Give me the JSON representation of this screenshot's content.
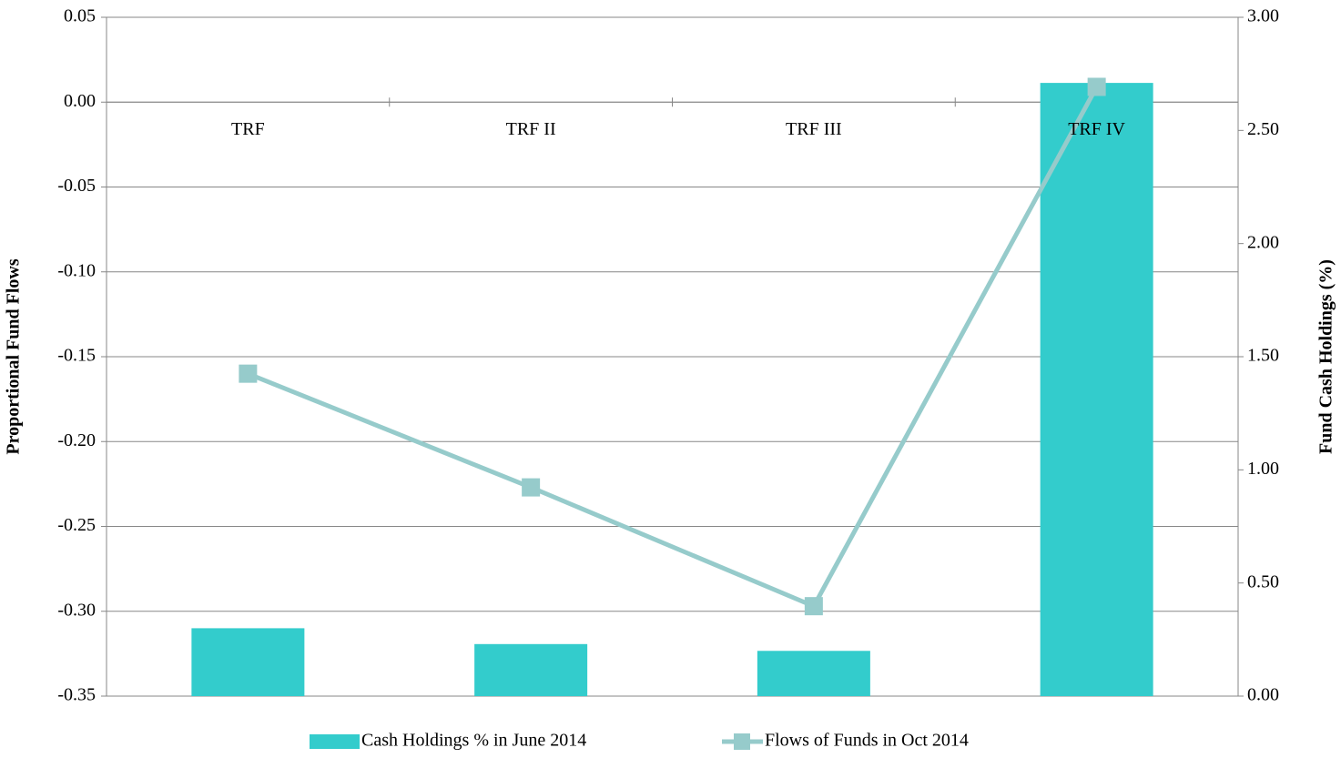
{
  "chart_data": {
    "type": "combo",
    "categories": [
      "TRF",
      "TRF II",
      "TRF III",
      "TRF IV"
    ],
    "series": [
      {
        "name": "Cash Holdings % in June 2014",
        "type": "bar",
        "axis": "y2",
        "color": "#33cccc",
        "values": [
          0.3,
          0.23,
          0.2,
          2.71
        ]
      },
      {
        "name": "Flows of Funds in Oct 2014",
        "type": "line",
        "axis": "y",
        "color": "#96cbcb",
        "values": [
          -0.16,
          -0.227,
          -0.297,
          0.009
        ]
      }
    ],
    "ylabel": "Proportional Fund Flows",
    "y2label": "Fund Cash Holdings (%)",
    "ylim": [
      -0.35,
      0.05
    ],
    "yticks": [
      {
        "value": 0.05,
        "label": "0.05"
      },
      {
        "value": 0,
        "label": "0.00"
      },
      {
        "value": -0.05,
        "label": "-0.05"
      },
      {
        "value": -0.1,
        "label": "-0.10"
      },
      {
        "value": -0.15,
        "label": "-0.15"
      },
      {
        "value": -0.2,
        "label": "-0.20"
      },
      {
        "value": -0.25,
        "label": "-0.25"
      },
      {
        "value": -0.3,
        "label": "-0.30"
      },
      {
        "value": -0.35,
        "label": "-0.35"
      }
    ],
    "y2lim": [
      0,
      3
    ],
    "y2ticks": [
      {
        "value": 0,
        "label": "0.00"
      },
      {
        "value": 0.5,
        "label": "0.50"
      },
      {
        "value": 1,
        "label": "1.00"
      },
      {
        "value": 1.5,
        "label": "1.50"
      },
      {
        "value": 2,
        "label": "2.00"
      },
      {
        "value": 2.5,
        "label": "2.50"
      },
      {
        "value": 3,
        "label": "3.00"
      }
    ],
    "grid": true,
    "legend": "bottom"
  }
}
